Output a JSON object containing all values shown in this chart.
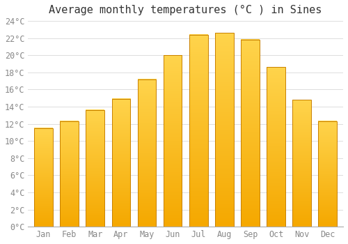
{
  "title": "Average monthly temperatures (°C ) in Sines",
  "months": [
    "Jan",
    "Feb",
    "Mar",
    "Apr",
    "May",
    "Jun",
    "Jul",
    "Aug",
    "Sep",
    "Oct",
    "Nov",
    "Dec"
  ],
  "values": [
    11.5,
    12.3,
    13.6,
    14.9,
    17.2,
    20.0,
    22.4,
    22.6,
    21.8,
    18.6,
    14.8,
    12.3
  ],
  "bar_color_top": "#FFD44C",
  "bar_color_bottom": "#F5A800",
  "bar_edge_color": "#C88000",
  "background_color": "#FFFFFF",
  "grid_color": "#DDDDDD",
  "ylim": [
    0,
    24
  ],
  "yticks": [
    0,
    2,
    4,
    6,
    8,
    10,
    12,
    14,
    16,
    18,
    20,
    22,
    24
  ],
  "ytick_labels": [
    "0°C",
    "2°C",
    "4°C",
    "6°C",
    "8°C",
    "10°C",
    "12°C",
    "14°C",
    "16°C",
    "18°C",
    "20°C",
    "22°C",
    "24°C"
  ],
  "title_fontsize": 11,
  "tick_fontsize": 8.5,
  "font_family": "monospace"
}
